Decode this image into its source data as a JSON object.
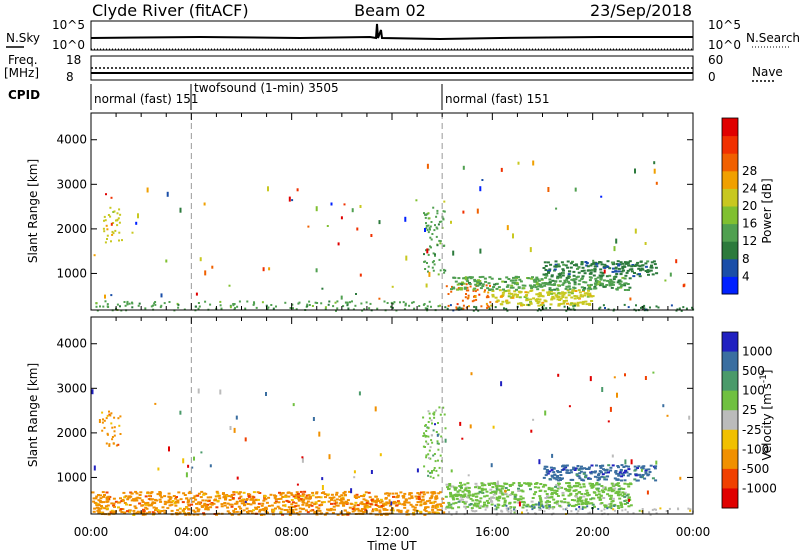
{
  "header": {
    "station": "Clyde River (fitACF)",
    "beam": "Beam 02",
    "date": "23/Sep/2018"
  },
  "status_panels": {
    "nsky": {
      "label": "N.Sky",
      "ticks": [
        "10^5",
        "10^0"
      ]
    },
    "nsearch": {
      "label": "N.Search",
      "ticks": [
        "10^5",
        "10^0"
      ]
    },
    "freq": {
      "label_top": "Freq.",
      "label_unit": "[MHz]",
      "ticks": [
        "18",
        "8"
      ]
    },
    "nave": {
      "label": "Nave",
      "ticks": [
        "60",
        "0"
      ]
    },
    "cpid": {
      "label": "CPID",
      "programs": [
        {
          "name": "normal (fast)",
          "id": "151",
          "start_hour": 0
        },
        {
          "name": "twofsound (1-min)",
          "id": "3505",
          "start_hour": 4
        },
        {
          "name": "normal (fast)",
          "id": "151",
          "start_hour": 14
        }
      ]
    }
  },
  "chart_data": [
    {
      "type": "heatmap",
      "panel": "power",
      "ylabel": "Slant Range [km]",
      "ylim": [
        180,
        4600
      ],
      "yticks": [
        1000,
        2000,
        3000,
        4000
      ],
      "xlim": [
        0,
        24
      ],
      "colorbar": {
        "label": "Power [dB]",
        "ticks": [
          "4",
          "8",
          "12",
          "16",
          "20",
          "24",
          "28"
        ],
        "colors": [
          "#0020ff",
          "#1a4ea8",
          "#2c7a3c",
          "#50a050",
          "#80c030",
          "#c8c820",
          "#f0a000",
          "#f06000",
          "#f03000",
          "#e00000"
        ]
      },
      "regions": [
        {
          "t0": 14.1,
          "t1": 15.9,
          "r0": 230,
          "r1": 800,
          "level": "28"
        },
        {
          "t0": 15.9,
          "t1": 20.0,
          "r0": 300,
          "r1": 650,
          "level": "20"
        },
        {
          "t0": 14.3,
          "t1": 21.5,
          "r0": 650,
          "r1": 950,
          "level": "12"
        },
        {
          "t0": 14.0,
          "t1": 24.0,
          "r0": 180,
          "r1": 320,
          "level": "8"
        },
        {
          "t0": 18.0,
          "t1": 22.5,
          "r0": 950,
          "r1": 1300,
          "level": "8"
        },
        {
          "t0": 0.0,
          "t1": 14.0,
          "r0": 180,
          "r1": 400,
          "level": "12"
        },
        {
          "t0": 13.2,
          "t1": 14.1,
          "r0": 1000,
          "r1": 2600,
          "level": "12"
        },
        {
          "t0": 0.4,
          "t1": 1.2,
          "r0": 1700,
          "r1": 2500,
          "level": "20"
        }
      ]
    },
    {
      "type": "heatmap",
      "panel": "velocity",
      "xlabel": "Time UT",
      "ylabel": "Slant Range [km]",
      "ylim": [
        180,
        4600
      ],
      "yticks": [
        1000,
        2000,
        3000,
        4000
      ],
      "xlim": [
        0,
        24
      ],
      "xticks": [
        "00:00",
        "04:00",
        "08:00",
        "12:00",
        "16:00",
        "20:00",
        "00:00"
      ],
      "colorbar": {
        "label": "Velocity [m s^-1]",
        "ticks": [
          "1000",
          "500",
          "100",
          "25",
          "-25",
          "-100",
          "-500",
          "-1000"
        ],
        "colors": [
          "#2020c0",
          "#3a6ea0",
          "#4a9a6a",
          "#70c040",
          "#bbbbbb",
          "#f0c000",
          "#f09000",
          "#f04000",
          "#e00000"
        ]
      },
      "regions": [
        {
          "t0": 14.1,
          "t1": 21.5,
          "r0": 330,
          "r1": 900,
          "level": "100"
        },
        {
          "t0": 16.0,
          "t1": 21.0,
          "r0": 300,
          "r1": 400,
          "level": "1000"
        },
        {
          "t0": 18.0,
          "t1": 22.5,
          "r0": 950,
          "r1": 1300,
          "level": "1000"
        },
        {
          "t0": 14.0,
          "t1": 24.0,
          "r0": 180,
          "r1": 330,
          "level": "25"
        },
        {
          "t0": 0.0,
          "t1": 14.0,
          "r0": 180,
          "r1": 700,
          "level": "-100"
        },
        {
          "t0": 13.2,
          "t1": 14.1,
          "r0": 1000,
          "r1": 2600,
          "level": "100"
        },
        {
          "t0": 0.4,
          "t1": 1.2,
          "r0": 1700,
          "r1": 2500,
          "level": "-100"
        }
      ]
    }
  ]
}
